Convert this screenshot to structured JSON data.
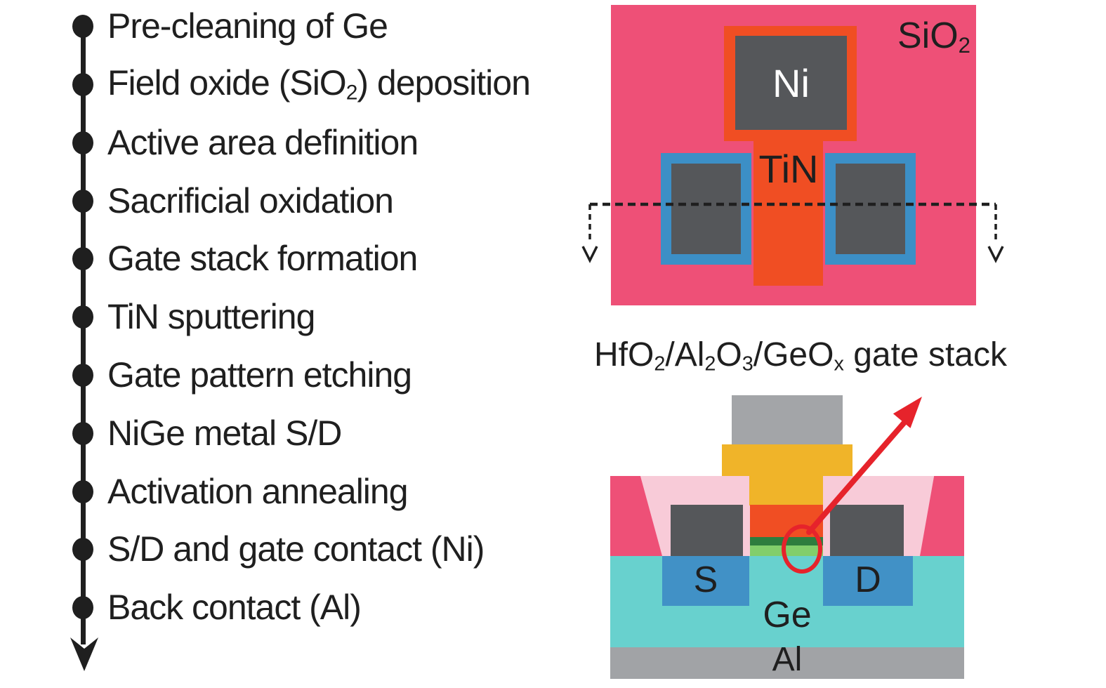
{
  "colors": {
    "ink": "#1f1f1f",
    "pink": "#EE5077",
    "light_pink": "#F8CBD8",
    "orange": "#F04E23",
    "yellow": "#F0B429",
    "dark_gray": "#55575A",
    "mid_gray": "#A3A5A8",
    "al_gray": "#A1A3A6",
    "pad_blue": "#3C8FC6",
    "well_blue": "#4191C6",
    "teal": "#68D1CE",
    "green_dark": "#2E7D3E",
    "green_light": "#82CE6B",
    "red": "#E6232B"
  },
  "process_flow": {
    "steps": [
      "Pre-cleaning of Ge",
      "Field oxide (SiO~2~) deposition",
      "Active area definition",
      "Sacrificial oxidation",
      "Gate stack formation",
      "TiN sputtering",
      "Gate pattern etching",
      "NiGe metal S/D",
      "Activation annealing",
      "S/D and gate contact (Ni)",
      "Back contact (Al)"
    ]
  },
  "top_view": {
    "background_label": "SiO~2~",
    "gate_contact_label": "Ni",
    "gate_line_label": "TiN"
  },
  "cross_section": {
    "title": "HfO~2~/Al~2~O~3~/GeO~x~ gate stack",
    "source_label": "S",
    "drain_label": "D",
    "substrate_label": "Ge",
    "back_contact_label": "Al"
  }
}
